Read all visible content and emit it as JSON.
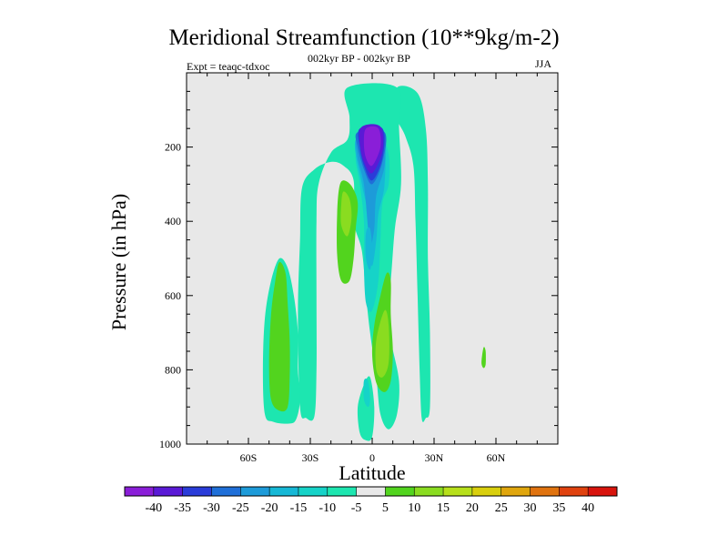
{
  "chart_data": {
    "type": "heatmap",
    "title": "Meridional Streamfunction (10**9kg/m-2)",
    "subtitle_left": "Expt = teaqc-tdxoc",
    "subtitle_center": "002kyr BP - 002kyr BP",
    "subtitle_right": "JJA",
    "xlabel": "Latitude",
    "ylabel": "Pressure (in hPa)",
    "xlim": [
      -90,
      90
    ],
    "ylim": [
      1000,
      0
    ],
    "x_ticks": [
      {
        "value": -60,
        "label": "60S"
      },
      {
        "value": -30,
        "label": "30S"
      },
      {
        "value": 0,
        "label": "0"
      },
      {
        "value": 30,
        "label": "30N"
      },
      {
        "value": 60,
        "label": "60N"
      }
    ],
    "y_ticks": [
      {
        "value": 200,
        "label": "200"
      },
      {
        "value": 400,
        "label": "400"
      },
      {
        "value": 600,
        "label": "600"
      },
      {
        "value": 800,
        "label": "800"
      },
      {
        "value": 1000,
        "label": "1000"
      }
    ],
    "background_color": "#e8e8e8",
    "colorbar": {
      "levels": [
        "-40",
        "-35",
        "-30",
        "-25",
        "-20",
        "-15",
        "-10",
        "-5",
        "5",
        "10",
        "15",
        "20",
        "25",
        "30",
        "35",
        "40"
      ],
      "colors": [
        "#8a1ed8",
        "#5a1ad6",
        "#2a3cd9",
        "#1f6fd8",
        "#1d9bd9",
        "#16b8d6",
        "#16d3c8",
        "#1de6b0",
        "#e8e8e8",
        "#52d41e",
        "#8adc20",
        "#b7e01b",
        "#d9cf0d",
        "#e0a60d",
        "#e0730f",
        "#e0420f",
        "#d8140d"
      ]
    },
    "regions": [
      {
        "label": "NH tropical upper lobe",
        "color": "#1de6b0",
        "points": [
          [
            12,
            40
          ],
          [
            22,
            55
          ],
          [
            26,
            150
          ],
          [
            27,
            300
          ],
          [
            27,
            500
          ],
          [
            28,
            700
          ],
          [
            28,
            900
          ],
          [
            26,
            930
          ],
          [
            24,
            930
          ],
          [
            23,
            800
          ],
          [
            22,
            600
          ],
          [
            21,
            400
          ],
          [
            20,
            250
          ],
          [
            16,
            170
          ],
          [
            12,
            120
          ]
        ]
      },
      {
        "label": "main cell band",
        "color": "#1de6b0",
        "points": [
          [
            -12,
            40
          ],
          [
            12,
            40
          ],
          [
            13,
            150
          ],
          [
            14,
            300
          ],
          [
            11,
            420
          ],
          [
            9,
            560
          ],
          [
            7,
            640
          ],
          [
            9,
            720
          ],
          [
            13,
            830
          ],
          [
            12,
            920
          ],
          [
            8,
            960
          ],
          [
            4,
            920
          ],
          [
            2,
            820
          ],
          [
            -1,
            700
          ],
          [
            -3,
            600
          ],
          [
            -5,
            480
          ],
          [
            -9,
            400
          ],
          [
            -9,
            290
          ],
          [
            -14,
            250
          ],
          [
            -20,
            240
          ],
          [
            -28,
            260
          ],
          [
            -34,
            310
          ],
          [
            -35,
            450
          ],
          [
            -36,
            650
          ],
          [
            -35,
            900
          ],
          [
            -32,
            930
          ],
          [
            -28,
            925
          ],
          [
            -27,
            800
          ],
          [
            -27,
            600
          ],
          [
            -27,
            400
          ],
          [
            -26,
            300
          ],
          [
            -20,
            215
          ],
          [
            -12,
            180
          ],
          [
            -11,
            120
          ]
        ]
      },
      {
        "label": "equatorial column",
        "color": "#1de6b0",
        "points": [
          [
            -4,
            840
          ],
          [
            -1,
            820
          ],
          [
            1,
            900
          ],
          [
            0,
            980
          ],
          [
            -3,
            990
          ],
          [
            -6,
            970
          ],
          [
            -7,
            900
          ]
        ]
      },
      {
        "label": "SH extratropical lobe",
        "color": "#1de6b0",
        "points": [
          [
            -45,
            500
          ],
          [
            -41,
            525
          ],
          [
            -38,
            600
          ],
          [
            -36,
            700
          ],
          [
            -36,
            800
          ],
          [
            -35,
            880
          ],
          [
            -37,
            935
          ],
          [
            -41,
            945
          ],
          [
            -48,
            940
          ],
          [
            -52,
            920
          ],
          [
            -53,
            800
          ],
          [
            -52,
            660
          ],
          [
            -49,
            560
          ]
        ]
      },
      {
        "label": "SH positive cell",
        "color": "#52d41e",
        "points": [
          [
            -45,
            510
          ],
          [
            -42,
            540
          ],
          [
            -41,
            620
          ],
          [
            -40,
            720
          ],
          [
            -40,
            820
          ],
          [
            -41,
            900
          ],
          [
            -45,
            910
          ],
          [
            -49,
            880
          ],
          [
            -50,
            780
          ],
          [
            -49,
            650
          ],
          [
            -47,
            560
          ]
        ]
      },
      {
        "label": "upper-left positive cell",
        "color": "#52d41e",
        "points": [
          [
            -14,
            290
          ],
          [
            -10,
            305
          ],
          [
            -7,
            350
          ],
          [
            -8,
            420
          ],
          [
            -9,
            500
          ],
          [
            -11,
            560
          ],
          [
            -15,
            560
          ],
          [
            -17,
            490
          ],
          [
            -17,
            380
          ],
          [
            -16,
            310
          ]
        ]
      },
      {
        "label": "upper-left 10 contour",
        "color": "#8adc20",
        "points": [
          [
            -14,
            320
          ],
          [
            -11,
            340
          ],
          [
            -10,
            390
          ],
          [
            -12,
            440
          ],
          [
            -15,
            410
          ],
          [
            -15,
            355
          ]
        ]
      },
      {
        "label": "lower positive cell",
        "color": "#52d41e",
        "points": [
          [
            7,
            540
          ],
          [
            9,
            560
          ],
          [
            9,
            650
          ],
          [
            10,
            750
          ],
          [
            9,
            830
          ],
          [
            6,
            860
          ],
          [
            2,
            835
          ],
          [
            0,
            760
          ],
          [
            1,
            680
          ],
          [
            4,
            600
          ]
        ]
      },
      {
        "label": "lower 10 contour",
        "color": "#8adc20",
        "points": [
          [
            6,
            640
          ],
          [
            8,
            680
          ],
          [
            8,
            780
          ],
          [
            5,
            820
          ],
          [
            2,
            800
          ],
          [
            2,
            720
          ]
        ]
      },
      {
        "label": "small NH positive cell",
        "color": "#52d41e",
        "points": [
          [
            54,
            740
          ],
          [
            55,
            750
          ],
          [
            55,
            785
          ],
          [
            54,
            795
          ],
          [
            53,
            780
          ]
        ]
      },
      {
        "label": "negative core -10",
        "color": "#16d3c8",
        "points": [
          [
            -3,
            170
          ],
          [
            4,
            165
          ],
          [
            8,
            220
          ],
          [
            8,
            300
          ],
          [
            5,
            350
          ],
          [
            4,
            450
          ],
          [
            3,
            560
          ],
          [
            0,
            640
          ],
          [
            -3,
            620
          ],
          [
            -4,
            520
          ],
          [
            -4,
            400
          ],
          [
            -6,
            300
          ],
          [
            -8,
            220
          ]
        ]
      },
      {
        "label": "negative -15",
        "color": "#16b8d6",
        "points": [
          [
            -8,
            180
          ],
          [
            5,
            180
          ],
          [
            6,
            300
          ],
          [
            3,
            380
          ],
          [
            2,
            450
          ],
          [
            0,
            520
          ],
          [
            -2,
            470
          ],
          [
            -2,
            380
          ],
          [
            -5,
            300
          ]
        ]
      },
      {
        "label": "negative -20",
        "color": "#1d9bd9",
        "points": [
          [
            -7,
            170
          ],
          [
            5,
            168
          ],
          [
            6,
            250
          ],
          [
            2,
            330
          ],
          [
            1,
            420
          ],
          [
            -1,
            470
          ],
          [
            -2,
            420
          ],
          [
            -4,
            300
          ],
          [
            -7,
            230
          ]
        ]
      },
      {
        "label": "negative -25",
        "color": "#1f6fd8",
        "points": [
          [
            -7,
            160
          ],
          [
            6,
            160
          ],
          [
            5,
            240
          ],
          [
            0,
            300
          ],
          [
            -4,
            260
          ],
          [
            -7,
            200
          ]
        ]
      },
      {
        "label": "negative -30",
        "color": "#2a3cd9",
        "points": [
          [
            -6,
            150
          ],
          [
            5,
            150
          ],
          [
            5,
            230
          ],
          [
            0,
            290
          ],
          [
            -4,
            250
          ],
          [
            -6,
            200
          ]
        ]
      },
      {
        "label": "negative core -35",
        "color": "#5a1ad6",
        "points": [
          [
            -5,
            145
          ],
          [
            4,
            145
          ],
          [
            5,
            210
          ],
          [
            0,
            270
          ],
          [
            -4,
            240
          ],
          [
            -6,
            190
          ]
        ]
      },
      {
        "label": "negative core -40",
        "color": "#8a1ed8",
        "points": [
          [
            -3,
            150
          ],
          [
            3,
            150
          ],
          [
            4,
            200
          ],
          [
            0,
            250
          ],
          [
            -3,
            230
          ],
          [
            -4,
            190
          ]
        ]
      },
      {
        "label": "mid-depth -15 blob",
        "color": "#16b8d6",
        "points": [
          [
            -3,
            430
          ],
          [
            -1,
            420
          ],
          [
            0,
            480
          ],
          [
            -1,
            530
          ],
          [
            -3,
            500
          ]
        ]
      },
      {
        "label": "deep -10 blob",
        "color": "#16d3c8",
        "points": [
          [
            -4,
            830
          ],
          [
            -2,
            830
          ],
          [
            -1,
            880
          ],
          [
            -2,
            900
          ],
          [
            -4,
            880
          ]
        ]
      }
    ]
  }
}
